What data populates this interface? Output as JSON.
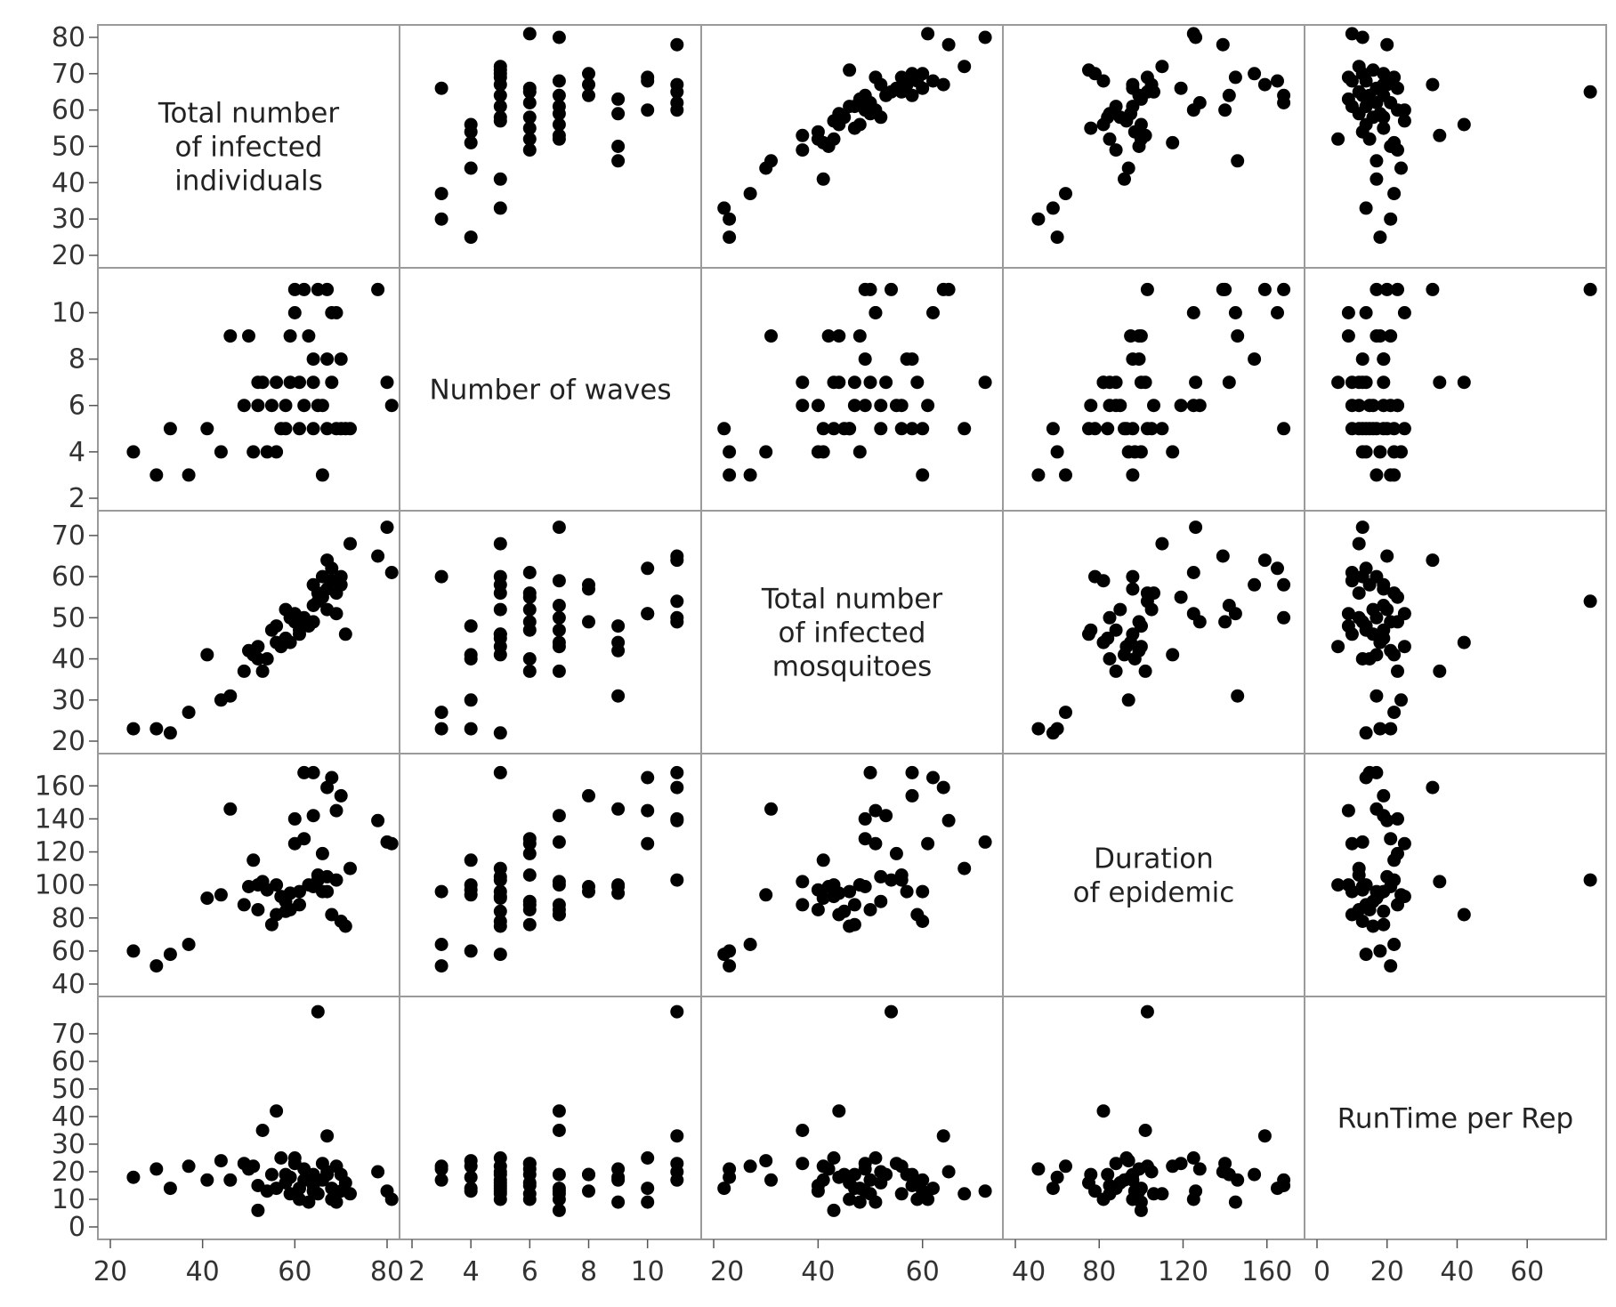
{
  "chart_data": {
    "type": "scatter_matrix",
    "title": "",
    "variables": [
      {
        "key": "infected",
        "label": [
          "Total number",
          "of infected",
          "individuals"
        ],
        "range": [
          20,
          80
        ],
        "ticks": [
          20,
          30,
          40,
          50,
          60,
          70,
          80
        ],
        "axis_ticks": [
          20,
          40,
          60,
          80
        ]
      },
      {
        "key": "waves",
        "label": [
          "Number of waves"
        ],
        "range": [
          2,
          11.4
        ],
        "ticks": [
          2,
          4,
          6,
          8,
          10
        ],
        "axis_ticks": [
          2,
          4,
          6,
          8,
          10
        ]
      },
      {
        "key": "mosq",
        "label": [
          "Total number",
          "of infected",
          "mosquitoes"
        ],
        "range": [
          20,
          73
        ],
        "ticks": [
          20,
          30,
          40,
          50,
          60,
          70
        ],
        "axis_ticks": [
          20,
          40,
          60
        ]
      },
      {
        "key": "duration",
        "label": [
          "Duration",
          "of epidemic"
        ],
        "range": [
          40,
          172
        ],
        "ticks": [
          40,
          60,
          80,
          100,
          120,
          140,
          160
        ],
        "axis_ticks": [
          40,
          80,
          120,
          160
        ]
      },
      {
        "key": "runtime",
        "label": [
          "RunTime per Rep"
        ],
        "range": [
          0,
          79
        ],
        "ticks": [
          0,
          10,
          20,
          30,
          40,
          50,
          60,
          70
        ],
        "axis_ticks": [
          0,
          20,
          40,
          60
        ]
      }
    ],
    "colors": {
      "points": "#000000",
      "border": "#9a9a9a",
      "ticks": "#333333"
    },
    "records": [
      [
        25,
        4,
        23,
        60,
        18
      ],
      [
        30,
        3,
        23,
        51,
        21
      ],
      [
        33,
        5,
        22,
        58,
        14
      ],
      [
        37,
        3,
        27,
        64,
        22
      ],
      [
        41,
        5,
        41,
        92,
        17
      ],
      [
        44,
        4,
        30,
        94,
        24
      ],
      [
        46,
        9,
        31,
        146,
        17
      ],
      [
        49,
        6,
        37,
        88,
        23
      ],
      [
        50,
        9,
        42,
        99,
        21
      ],
      [
        51,
        4,
        41,
        115,
        22
      ],
      [
        52,
        7,
        43,
        100,
        6
      ],
      [
        52,
        6,
        40,
        85,
        15
      ],
      [
        53,
        7,
        37,
        102,
        35
      ],
      [
        54,
        4,
        40,
        97,
        13
      ],
      [
        55,
        6,
        47,
        76,
        19
      ],
      [
        56,
        7,
        44,
        82,
        42
      ],
      [
        56,
        4,
        48,
        100,
        14
      ],
      [
        57,
        5,
        43,
        93,
        25
      ],
      [
        58,
        5,
        45,
        84,
        19
      ],
      [
        58,
        6,
        52,
        90,
        16
      ],
      [
        59,
        7,
        50,
        85,
        12
      ],
      [
        59,
        9,
        44,
        95,
        18
      ],
      [
        60,
        11,
        49,
        140,
        23
      ],
      [
        60,
        10,
        51,
        125,
        25
      ],
      [
        61,
        5,
        46,
        96,
        10
      ],
      [
        61,
        7,
        47,
        88,
        14
      ],
      [
        62,
        11,
        50,
        168,
        17
      ],
      [
        62,
        6,
        49,
        128,
        21
      ],
      [
        63,
        9,
        48,
        100,
        9
      ],
      [
        64,
        7,
        53,
        142,
        19
      ],
      [
        64,
        5,
        58,
        168,
        15
      ],
      [
        64,
        8,
        49,
        99,
        13
      ],
      [
        65,
        11,
        54,
        103,
        78
      ],
      [
        65,
        6,
        56,
        106,
        12
      ],
      [
        66,
        3,
        60,
        96,
        17
      ],
      [
        66,
        6,
        55,
        119,
        23
      ],
      [
        67,
        5,
        52,
        105,
        20
      ],
      [
        67,
        11,
        64,
        159,
        33
      ],
      [
        67,
        8,
        57,
        96,
        19
      ],
      [
        68,
        10,
        62,
        165,
        14
      ],
      [
        68,
        7,
        59,
        82,
        10
      ],
      [
        69,
        5,
        56,
        103,
        22
      ],
      [
        69,
        10,
        51,
        145,
        9
      ],
      [
        70,
        8,
        58,
        154,
        19
      ],
      [
        70,
        5,
        60,
        78,
        13
      ],
      [
        71,
        5,
        46,
        75,
        16
      ],
      [
        72,
        5,
        68,
        110,
        12
      ],
      [
        78,
        11,
        65,
        139,
        20
      ],
      [
        80,
        7,
        72,
        126,
        13
      ],
      [
        81,
        6,
        61,
        125,
        10
      ]
    ],
    "axis_note": "Diagonal cells carry variable names; off-diagonal cells plot row variable (y) against column variable (x)."
  }
}
